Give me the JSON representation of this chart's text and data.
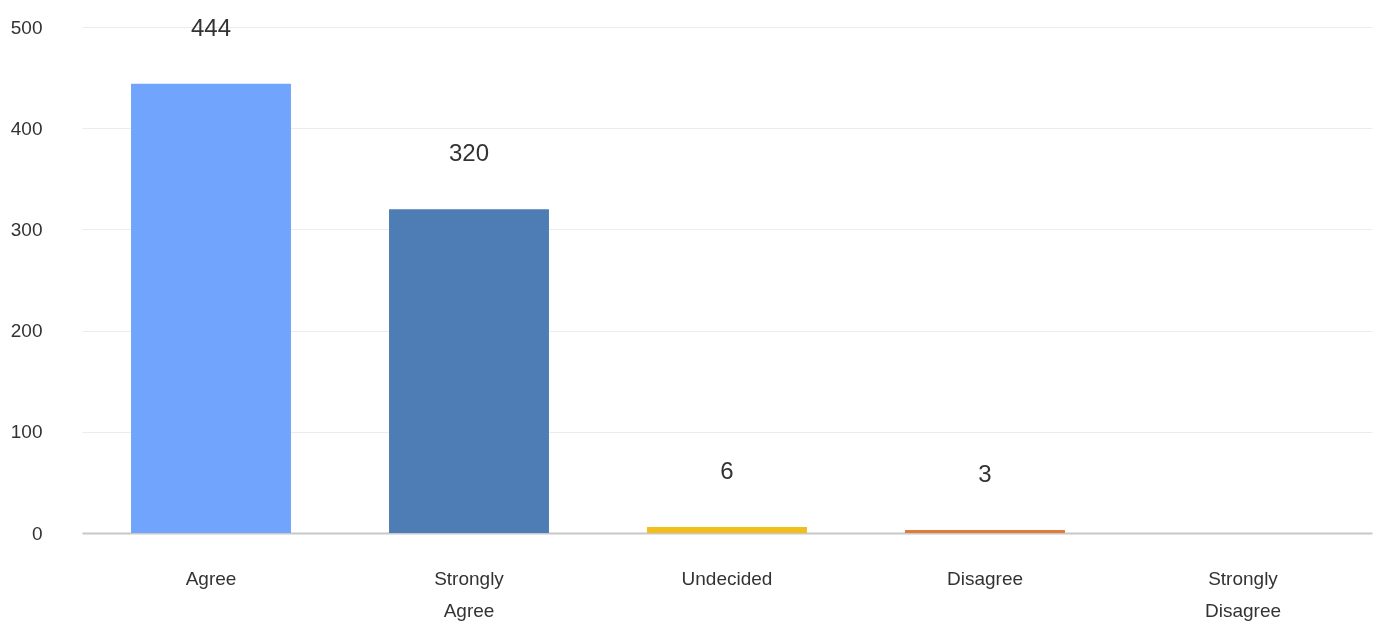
{
  "chart_data": {
    "type": "bar",
    "categories": [
      "Agree",
      "Strongly Agree",
      "Undecided",
      "Disagree",
      "Strongly Disagree"
    ],
    "values": [
      444,
      320,
      6,
      3,
      0
    ],
    "colors": [
      "#71a5fd",
      "#4e7db5",
      "#f1be1c",
      "#e07b39",
      "#8fbf5a"
    ],
    "value_labels": [
      "444",
      "320",
      "6",
      "3",
      null
    ],
    "ylim": [
      0,
      500
    ],
    "yticks": [
      0,
      100,
      200,
      300,
      400,
      500
    ],
    "grid": "y"
  }
}
